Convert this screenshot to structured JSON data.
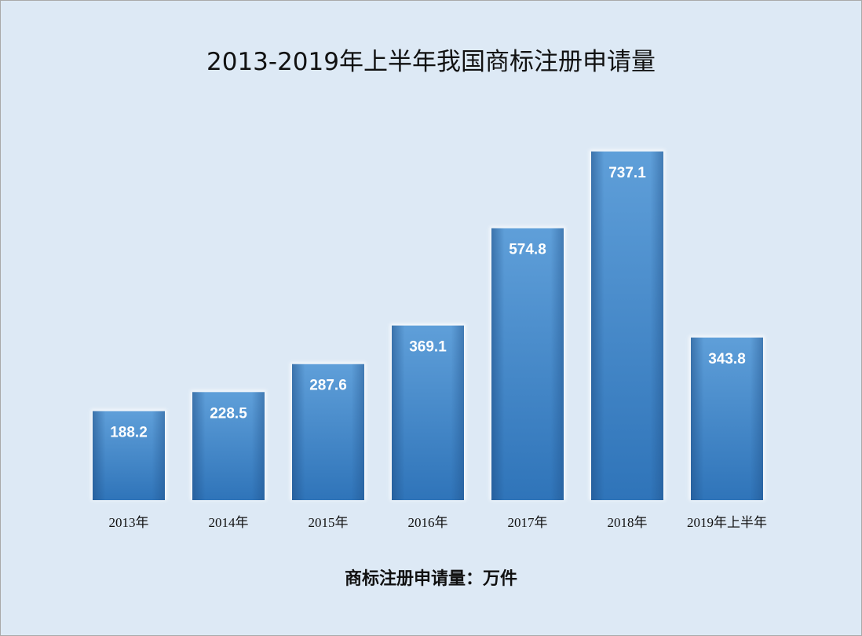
{
  "chart_data": {
    "type": "bar",
    "title": "2013-2019年上半年我国商标注册申请量",
    "unit_note": "商标注册申请量：万件",
    "categories": [
      "2013年",
      "2014年",
      "2015年",
      "2016年",
      "2017年",
      "2018年",
      "2019年上半年"
    ],
    "values": [
      188.2,
      228.5,
      287.6,
      369.1,
      574.8,
      737.1,
      343.8
    ],
    "value_labels": [
      "188.2",
      "228.5",
      "287.6",
      "369.1",
      "574.8",
      "737.1",
      "343.8"
    ],
    "ylim": [
      0,
      800
    ],
    "grid": false,
    "legend": "none",
    "colors": {
      "bar_top": "#5f9fd9",
      "bar_bottom": "#2f74b9",
      "bar_side": "#265f9a",
      "label": "#ffffff",
      "background": "#dde9f5"
    }
  }
}
